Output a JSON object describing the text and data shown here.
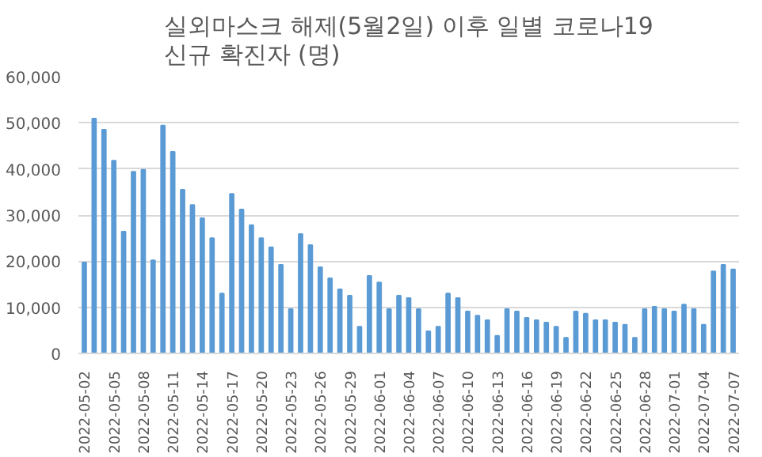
{
  "chart_data": {
    "type": "bar",
    "title": "실외마스크 해제(5월2일) 이후 일별 코로나19\n신규 확진자 (명)",
    "categories": [
      "2022-05-02",
      null,
      null,
      "2022-05-05",
      null,
      null,
      "2022-05-08",
      null,
      null,
      "2022-05-11",
      null,
      null,
      "2022-05-14",
      null,
      null,
      "2022-05-17",
      null,
      null,
      "2022-05-20",
      null,
      null,
      "2022-05-23",
      null,
      null,
      "2022-05-26",
      null,
      null,
      "2022-05-29",
      null,
      null,
      "2022-06-01",
      null,
      null,
      "2022-06-04",
      null,
      null,
      "2022-06-07",
      null,
      null,
      "2022-06-10",
      null,
      null,
      "2022-06-13",
      null,
      null,
      "2022-06-16",
      null,
      null,
      "2022-06-19",
      null,
      null,
      "2022-06-22",
      null,
      null,
      "2022-06-25",
      null,
      null,
      "2022-06-28",
      null,
      null,
      "2022-07-01",
      null,
      null,
      "2022-07-04",
      null,
      null,
      "2022-07-07"
    ],
    "values": [
      19700,
      50900,
      48500,
      41800,
      26400,
      39400,
      39800,
      20200,
      49400,
      43700,
      35500,
      32200,
      29300,
      25000,
      13000,
      34600,
      31200,
      27800,
      25000,
      23000,
      19200,
      9600,
      25900,
      23500,
      18700,
      16300,
      13900,
      12500,
      5800,
      16800,
      15400,
      9600,
      12500,
      12000,
      9600,
      4800,
      5800,
      13000,
      12000,
      9100,
      8200,
      7200,
      3800,
      9600,
      9100,
      7700,
      7200,
      6700,
      5800,
      3400,
      9100,
      8600,
      7200,
      7200,
      6700,
      6200,
      3400,
      9600,
      10100,
      9600,
      9100,
      10600,
      9600,
      6200,
      17800,
      19200,
      18200
    ],
    "color": "#5b9bd5",
    "ylim": [
      0,
      60000
    ],
    "yticks": [
      {
        "value": 0,
        "label": "0"
      },
      {
        "value": 10000,
        "label": "10,000"
      },
      {
        "value": 20000,
        "label": "20,000"
      },
      {
        "value": 30000,
        "label": "30,000"
      },
      {
        "value": 40000,
        "label": "40,000"
      },
      {
        "value": 50000,
        "label": "50,000"
      },
      {
        "value": 60000,
        "label": "60,000"
      }
    ],
    "grid": "y"
  }
}
